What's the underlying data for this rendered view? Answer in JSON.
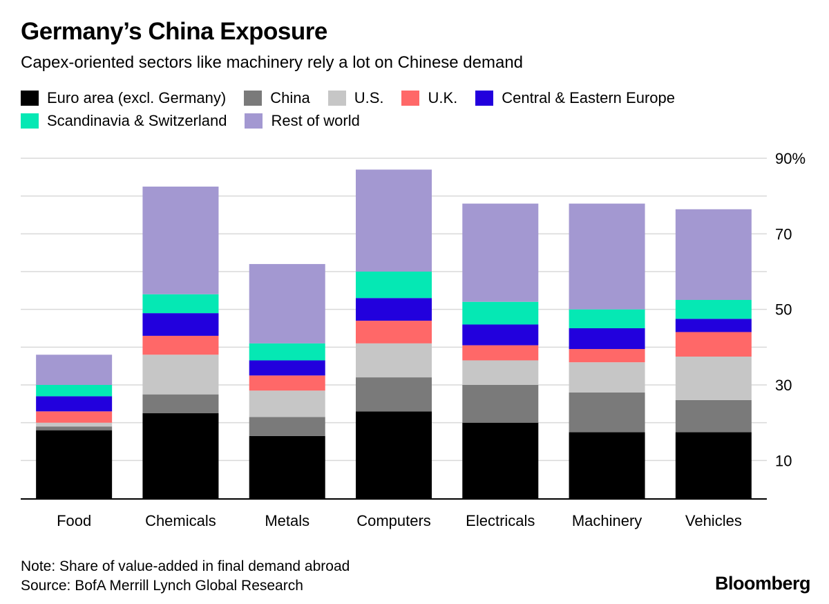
{
  "title": "Germany’s China Exposure",
  "subtitle": "Capex-oriented sectors like machinery rely a lot on Chinese demand",
  "note": "Note: Share of value-added in final demand abroad",
  "source": "Source: BofA Merrill Lynch Global Research",
  "logo": "Bloomberg",
  "chart_data": {
    "type": "bar",
    "stacked": true,
    "title": "Germany’s China Exposure",
    "subtitle": "Capex-oriented sectors like machinery rely a lot on Chinese demand",
    "xlabel": "",
    "ylabel": "",
    "ylim": [
      0,
      90
    ],
    "yticks": [
      10,
      30,
      50,
      70,
      90
    ],
    "ytick_labels": [
      "10",
      "30",
      "50",
      "70",
      "90%"
    ],
    "grid": true,
    "legend_position": "top",
    "categories": [
      "Food",
      "Chemicals",
      "Metals",
      "Computers",
      "Electricals",
      "Machinery",
      "Vehicles"
    ],
    "series": [
      {
        "name": "Euro area (excl. Germany)",
        "color": "#000000",
        "values": [
          18,
          22.5,
          16.5,
          23,
          20,
          17.5,
          17.5
        ]
      },
      {
        "name": "China",
        "color": "#7a7a7a",
        "values": [
          1,
          5,
          5,
          9,
          10,
          10.5,
          8.5
        ]
      },
      {
        "name": "U.S.",
        "color": "#c6c6c6",
        "values": [
          1,
          10.5,
          7,
          9,
          6.5,
          8,
          11.5
        ]
      },
      {
        "name": "U.K.",
        "color": "#ff6868",
        "values": [
          3,
          5,
          4,
          6,
          4,
          3.5,
          6.5
        ]
      },
      {
        "name": "Central & Eastern Europe",
        "color": "#2200dd",
        "values": [
          4,
          6,
          4,
          6,
          5.5,
          5.5,
          3.5
        ]
      },
      {
        "name": "Scandinavia & Switzerland",
        "color": "#05e8b4",
        "values": [
          3,
          5,
          4.5,
          7,
          6,
          5,
          5
        ]
      },
      {
        "name": "Rest of world",
        "color": "#a398d1",
        "values": [
          8,
          28.5,
          21,
          27,
          26,
          28,
          24
        ]
      }
    ]
  }
}
